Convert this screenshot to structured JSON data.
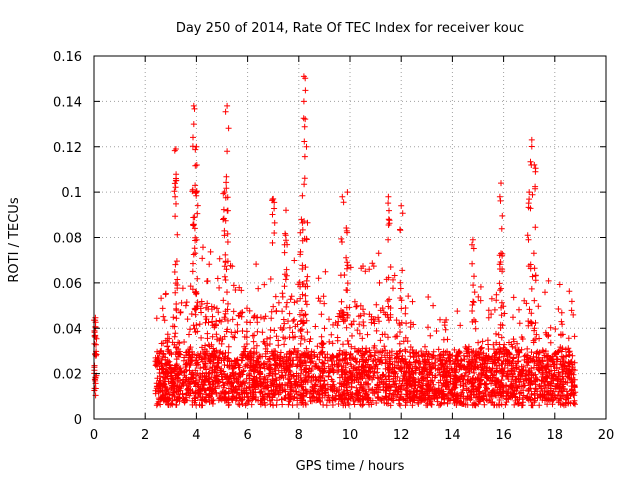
{
  "chart_data": {
    "type": "scatter",
    "title": "Day 250 of 2014, Rate Of TEC Index for receiver kouc",
    "xlabel": "GPS time / hours",
    "ylabel": "ROTI / TECUs",
    "xlim": [
      0,
      20
    ],
    "ylim": [
      0,
      0.16
    ],
    "x_ticks": [
      "0",
      "2",
      "4",
      "6",
      "8",
      "10",
      "12",
      "14",
      "16",
      "18",
      "20"
    ],
    "y_ticks": [
      "0",
      "0.02",
      "0.04",
      "0.06",
      "0.08",
      "0.1",
      "0.12",
      "0.14",
      "0.16"
    ],
    "grid": true,
    "marker": "+",
    "color": "#ff0000",
    "series": [
      {
        "name": "ROTI",
        "data_ranges": [
          {
            "x": [
              0.0,
              0.1
            ],
            "base": 0.01,
            "spread": 0.035
          },
          {
            "x": [
              2.4,
              18.8
            ],
            "base": 0.005,
            "spread": 0.04
          }
        ],
        "peaks": [
          {
            "x": 3.2,
            "y": 0.119
          },
          {
            "x": 3.2,
            "y": 0.105
          },
          {
            "x": 3.9,
            "y": 0.138
          },
          {
            "x": 3.9,
            "y": 0.13
          },
          {
            "x": 4.0,
            "y": 0.12
          },
          {
            "x": 4.0,
            "y": 0.1
          },
          {
            "x": 5.2,
            "y": 0.138
          },
          {
            "x": 5.2,
            "y": 0.118
          },
          {
            "x": 5.1,
            "y": 0.1
          },
          {
            "x": 8.2,
            "y": 0.151
          },
          {
            "x": 8.2,
            "y": 0.14
          },
          {
            "x": 8.3,
            "y": 0.12
          },
          {
            "x": 8.1,
            "y": 0.088
          },
          {
            "x": 9.7,
            "y": 0.098
          },
          {
            "x": 9.9,
            "y": 0.1
          },
          {
            "x": 11.5,
            "y": 0.098
          },
          {
            "x": 12.0,
            "y": 0.094
          },
          {
            "x": 14.8,
            "y": 0.079
          },
          {
            "x": 15.9,
            "y": 0.104
          },
          {
            "x": 15.9,
            "y": 0.073
          },
          {
            "x": 17.1,
            "y": 0.123
          },
          {
            "x": 17.2,
            "y": 0.112
          },
          {
            "x": 17.0,
            "y": 0.1
          },
          {
            "x": 7.0,
            "y": 0.097
          },
          {
            "x": 7.5,
            "y": 0.092
          }
        ],
        "activity_profile": [
          {
            "x": 2.5,
            "level": 0.025
          },
          {
            "x": 3.5,
            "level": 0.045
          },
          {
            "x": 4.0,
            "level": 0.05
          },
          {
            "x": 5.0,
            "level": 0.045
          },
          {
            "x": 6.5,
            "level": 0.04
          },
          {
            "x": 7.5,
            "level": 0.055
          },
          {
            "x": 8.5,
            "level": 0.03
          },
          {
            "x": 10.0,
            "level": 0.045
          },
          {
            "x": 11.5,
            "level": 0.045
          },
          {
            "x": 12.5,
            "level": 0.025
          },
          {
            "x": 14.0,
            "level": 0.022
          },
          {
            "x": 15.0,
            "level": 0.03
          },
          {
            "x": 16.5,
            "level": 0.028
          },
          {
            "x": 17.2,
            "level": 0.04
          },
          {
            "x": 18.7,
            "level": 0.025
          }
        ]
      }
    ]
  }
}
